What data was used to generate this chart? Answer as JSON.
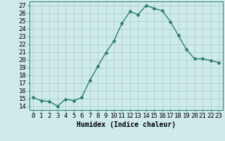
{
  "xlabel": "Humidex (Indice chaleur)",
  "x": [
    0,
    1,
    2,
    3,
    4,
    5,
    6,
    7,
    8,
    9,
    10,
    11,
    12,
    13,
    14,
    15,
    16,
    17,
    18,
    19,
    20,
    21,
    22,
    23
  ],
  "y": [
    15.1,
    14.7,
    14.6,
    14.0,
    14.9,
    14.7,
    15.1,
    17.3,
    19.1,
    20.9,
    22.4,
    24.7,
    26.2,
    25.8,
    27.0,
    26.6,
    26.3,
    24.9,
    23.1,
    21.3,
    20.1,
    20.1,
    19.9,
    19.6
  ],
  "line_color": "#2e7d6e",
  "marker": "D",
  "marker_size": 2.0,
  "line_width": 1.0,
  "bg_color": "#ceeaea",
  "grid_color": "#aed0d0",
  "ylim": [
    13.5,
    27.5
  ],
  "yticks": [
    14,
    15,
    16,
    17,
    18,
    19,
    20,
    21,
    22,
    23,
    24,
    25,
    26,
    27
  ],
  "xlim": [
    -0.5,
    23.5
  ],
  "label_fontsize": 7,
  "tick_fontsize": 6.5
}
